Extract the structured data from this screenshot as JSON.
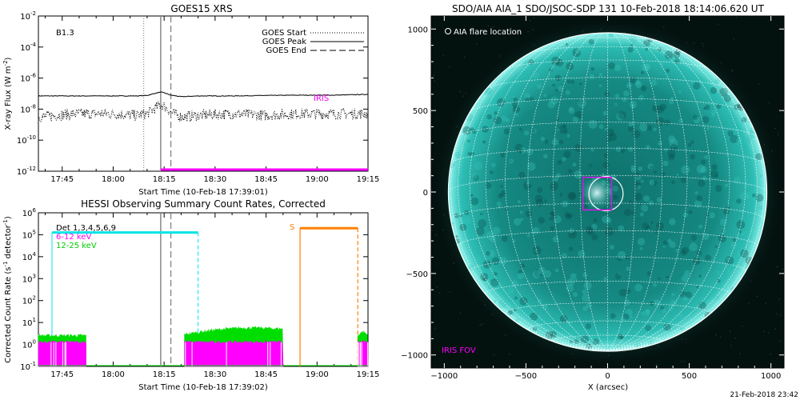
{
  "chart_data": [
    {
      "type": "line",
      "title": "GOES15 XRS",
      "xlabel": "Start Time (10-Feb-18 17:39:01)",
      "ylabel": "X-ray Flux (W m",
      "ylabel_sup": "-2",
      "ylabel_end": ")",
      "xlim": [
        -1,
        96
      ],
      "ylim_log": [
        -12,
        -2
      ],
      "xticks": [
        6,
        21,
        36,
        51,
        66,
        81,
        96
      ],
      "xticklabels": [
        "17:45",
        "18:00",
        "18:15",
        "18:30",
        "18:45",
        "19:00",
        "19:15"
      ],
      "yticks": [
        -12,
        -10,
        -8,
        -6,
        -4,
        -2
      ],
      "class_label": "B1.3",
      "legend": [
        {
          "label": "GOES Start",
          "style": "dotted"
        },
        {
          "label": "GOES Peak",
          "style": "solid"
        },
        {
          "label": "GOES End",
          "style": "dashed"
        }
      ],
      "markers": {
        "start": 30,
        "peak": 35,
        "end": 38
      },
      "iris_label": "IRIS",
      "iris_bar": {
        "x": [
          35,
          96
        ],
        "log_y": -12
      },
      "series": [
        {
          "name": "long",
          "color": "#000000",
          "x": [
            -1,
            10,
            20,
            28,
            31,
            33,
            35,
            36,
            38,
            41,
            46,
            56,
            66,
            76,
            86,
            96
          ],
          "log_y": [
            -7.15,
            -7.15,
            -7.15,
            -7.15,
            -7.12,
            -7.0,
            -6.9,
            -6.95,
            -7.1,
            -7.2,
            -7.15,
            -7.15,
            -7.12,
            -7.1,
            -7.1,
            -7.05
          ]
        },
        {
          "name": "short",
          "color": "#000000",
          "style": "dotted",
          "x": [
            -1,
            10,
            20,
            28,
            31,
            33,
            35,
            36,
            38,
            41,
            46,
            56,
            66,
            76,
            86,
            96
          ],
          "log_y": [
            -8.5,
            -8.3,
            -8.3,
            -8.4,
            -8.3,
            -8.0,
            -7.7,
            -7.8,
            -8.2,
            -8.5,
            -8.4,
            -8.3,
            -8.4,
            -8.3,
            -8.3,
            -8.3
          ]
        }
      ]
    },
    {
      "type": "line",
      "title": "HESSI Observing Summary Count Rates, Corrected",
      "xlabel": "Start Time (10-Feb-18 17:39:02)",
      "ylabel": "Corrected Count Rate (s",
      "ylabel_sup1": "-1",
      "ylabel_mid": " detector",
      "ylabel_sup2": "-1",
      "ylabel_end": ")",
      "xlim": [
        -1,
        96
      ],
      "ylim_log": [
        -1,
        6
      ],
      "xticks": [
        6,
        21,
        36,
        51,
        66,
        81,
        96
      ],
      "xticklabels": [
        "17:45",
        "18:00",
        "18:15",
        "18:30",
        "18:45",
        "19:00",
        "19:15"
      ],
      "yticks": [
        -1,
        0,
        1,
        2,
        3,
        4,
        5,
        6
      ],
      "legend": [
        {
          "label": "Det 1,3,4,5,6,9",
          "color": "#000000"
        },
        {
          "label": "6-12 keV",
          "color": "#ff00ff"
        },
        {
          "label": "12-25 keV",
          "color": "#00dd00"
        }
      ],
      "markers": {
        "goes_start": 35,
        "goes_end": 38
      },
      "night_bars": {
        "color": "#00e5e5",
        "x": [
          3,
          46
        ],
        "log_y": 5.1
      },
      "saa": {
        "label": "S",
        "color": "#ff8000",
        "x": [
          76,
          93
        ],
        "log_y": 5.3
      },
      "series": [
        {
          "name": "12-25 keV",
          "color": "#00dd00",
          "segments": [
            {
              "x": [
                -1,
                13
              ],
              "log_y": [
                0.4,
                0.4
              ]
            },
            {
              "x": [
                42,
                71
              ],
              "log_y": [
                0.45,
                0.7
              ]
            },
            {
              "x": [
                93,
                96
              ],
              "log_y": [
                0.4,
                0.4
              ]
            }
          ]
        },
        {
          "name": "6-12 keV",
          "color": "#ff00ff",
          "segments": [
            {
              "x": [
                -1,
                13
              ],
              "log_y": [
                0.1,
                0.1
              ]
            },
            {
              "x": [
                42,
                71
              ],
              "log_y": [
                0.1,
                0.1
              ]
            },
            {
              "x": [
                93,
                96
              ],
              "log_y": [
                0.1,
                0.1
              ]
            }
          ]
        }
      ]
    },
    {
      "type": "scatter",
      "title": "SDO/AIA AIA_1 SDO/JSOC-SDP 131 10-Feb-2018 18:14:06.620 UT",
      "xlabel": "X (arcsec)",
      "ylabel": "Y (arcsec)",
      "xlim": [
        -1080,
        1080
      ],
      "ylim": [
        -1080,
        1080
      ],
      "xticks": [
        -1000,
        -500,
        0,
        500,
        1000
      ],
      "yticks": [
        -1000,
        -500,
        0,
        500,
        1000
      ],
      "solar_radius": 975,
      "flare_legend": "AIA flare location",
      "flare_center": [
        -10,
        -10
      ],
      "flare_radius": 105,
      "iris_fov_label": "IRIS FOV",
      "iris_fov_box": {
        "x": [
          -150,
          25
        ],
        "y": [
          -110,
          90
        ]
      },
      "disk_color": "#1aa39a",
      "background_color": "#04120f"
    }
  ],
  "footer": {
    "timestamp": "21-Feb-2018 23:42"
  }
}
